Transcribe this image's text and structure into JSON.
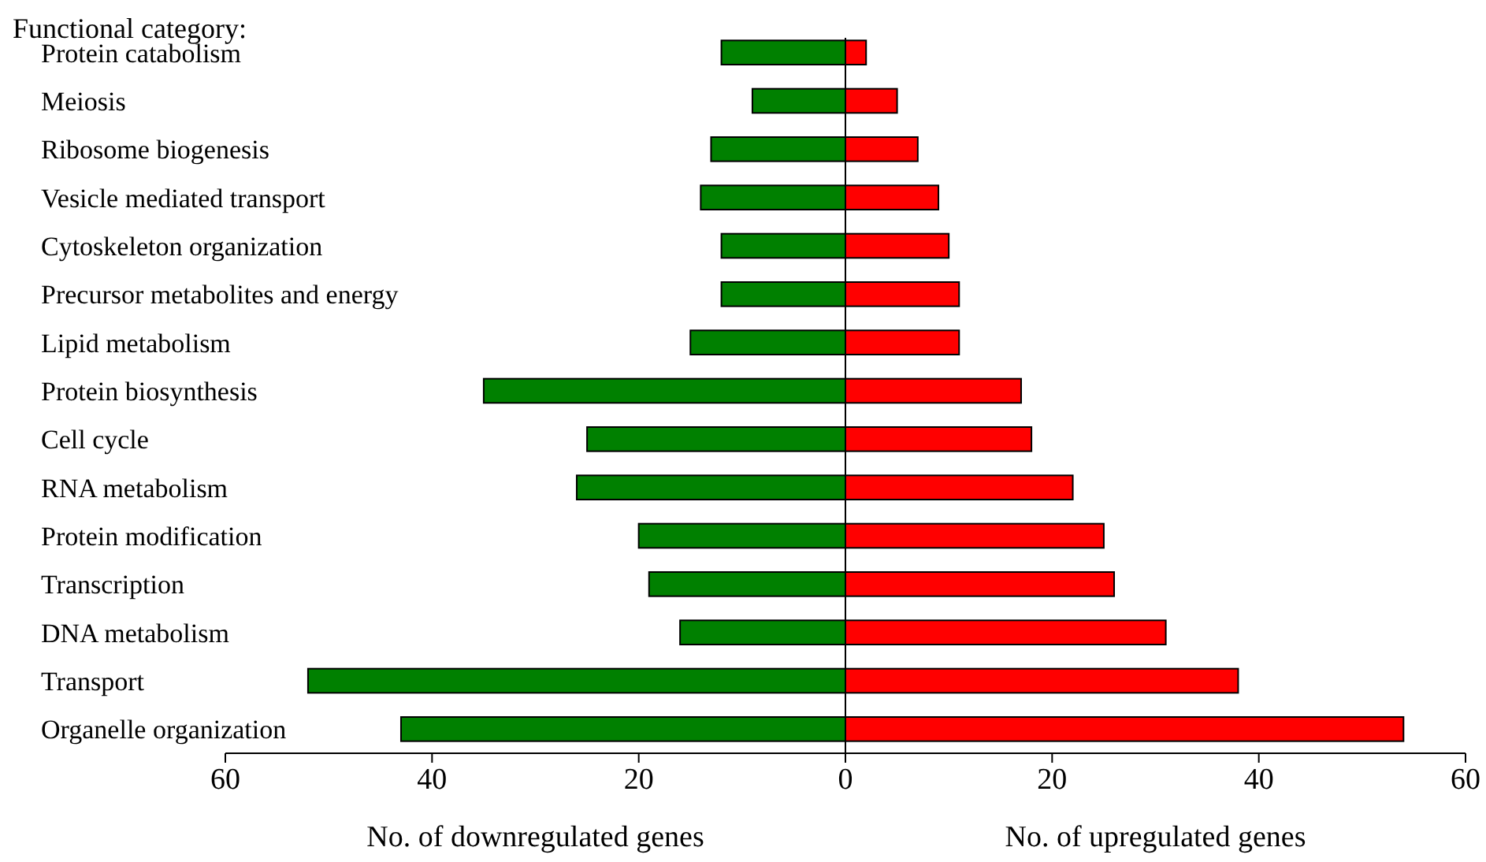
{
  "chart_data": {
    "type": "bar",
    "orientation": "horizontal",
    "stacked": true,
    "title": "Functional category:",
    "categories": [
      "Protein catabolism",
      "Meiosis",
      "Ribosome biogenesis",
      "Vesicle mediated transport",
      "Cytoskeleton organization",
      "Precursor metabolites and energy",
      "Lipid metabolism",
      "Protein biosynthesis",
      "Cell cycle",
      "RNA metabolism",
      "Protein modification",
      "Transcription",
      "DNA metabolism",
      "Transport",
      "Organelle organization"
    ],
    "series": [
      {
        "color": "#008000",
        "values": [
          -12,
          -9,
          -13,
          -14,
          -12,
          -12,
          -15,
          -35,
          -25,
          -26,
          -20,
          -19,
          -16,
          -52,
          -43
        ]
      },
      {
        "color": "#ff0000",
        "values": [
          2,
          5,
          7,
          9,
          10,
          11,
          11,
          17,
          18,
          22,
          25,
          26,
          31,
          38,
          54
        ]
      }
    ],
    "xlim": [
      -60,
      60
    ],
    "xticks": [
      {
        "value": -60,
        "label": "60"
      },
      {
        "value": -40,
        "label": "40"
      },
      {
        "value": -20,
        "label": "20"
      },
      0,
      20,
      40,
      60
    ],
    "xlabel": "No. of downregulated genes",
    "annotations": [
      "No. of upregulated genes"
    ],
    "legend": false
  }
}
